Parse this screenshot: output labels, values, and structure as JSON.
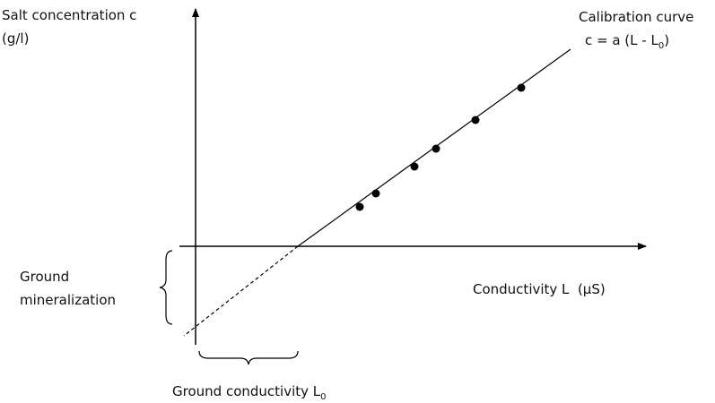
{
  "y_axis": {
    "label": [
      "Salt concentration c",
      "(g/l)"
    ]
  },
  "x_axis": {
    "label": "Conductivity L  (µS)"
  },
  "curve": {
    "title": "Calibration curve",
    "equation": [
      "c = a (L - L",
      "0",
      ")"
    ]
  },
  "ground_mineralization": [
    "Ground",
    "mineralization"
  ],
  "ground_conductivity": [
    "Ground conductivity L",
    "0"
  ]
}
